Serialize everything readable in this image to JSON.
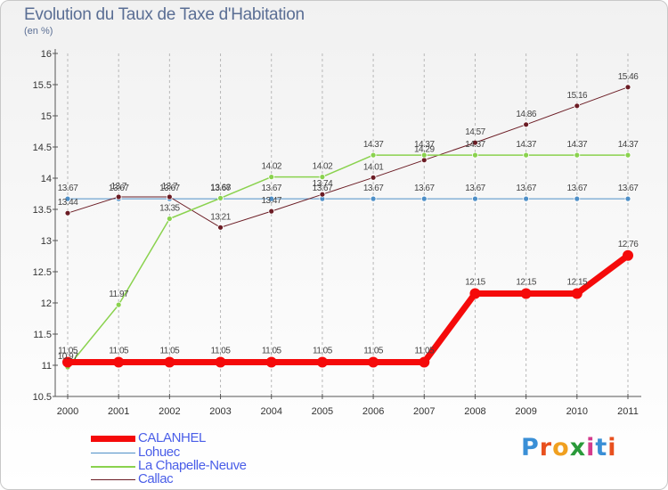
{
  "title": "Evolution du Taux de Taxe d'Habitation",
  "unit": "(en %)",
  "logo": {
    "letters": [
      "P",
      "r",
      "o",
      "x",
      "i",
      "t",
      "i"
    ],
    "colors": [
      "#3a8fd6",
      "#e8501e",
      "#f0a020",
      "#2a9a3a",
      "#d43b8c",
      "#3a8fd6",
      "#e8501e"
    ]
  },
  "chart_data": {
    "type": "line",
    "title": "Evolution du Taux de Taxe d'Habitation",
    "ylabel": "(en %)",
    "xlabel": "",
    "x": [
      "2000",
      "2001",
      "2002",
      "2003",
      "2004",
      "2005",
      "2006",
      "2007",
      "2008",
      "2009",
      "2010",
      "2011"
    ],
    "ylim": [
      10.5,
      16
    ],
    "yticks": [
      "10.5",
      "11",
      "11.5",
      "12",
      "12.5",
      "13",
      "13.5",
      "14",
      "14.5",
      "15",
      "15.5",
      "16"
    ],
    "series": [
      {
        "name": "Lohuec",
        "color": "#4e8fc7",
        "width": 1,
        "values": [
          13.67,
          13.67,
          13.67,
          13.67,
          13.67,
          13.67,
          13.67,
          13.67,
          13.67,
          13.67,
          13.67,
          13.67
        ],
        "labels": [
          "13.67",
          "13.67",
          "13.67",
          "13.67",
          "13.67",
          "13.67",
          "13.67",
          "13.67",
          "13.67",
          "13.67",
          "13.67",
          "13.67"
        ]
      },
      {
        "name": "Callac",
        "color": "#6b1c24",
        "width": 1,
        "values": [
          13.44,
          13.7,
          13.7,
          13.21,
          13.47,
          13.74,
          14.01,
          14.29,
          14.57,
          14.86,
          15.16,
          15.46
        ],
        "labels": [
          "13.44",
          "13.7",
          "13.7",
          "13.21",
          "13.47",
          "13.74",
          "14.01",
          "14.29",
          "14.57",
          "14.86",
          "15.16",
          "15.46"
        ]
      },
      {
        "name": "La Chapelle-Neuve",
        "color": "#8ad24e",
        "width": 1.5,
        "values": [
          10.97,
          11.97,
          13.35,
          13.68,
          14.02,
          14.02,
          14.37,
          14.37,
          14.37,
          14.37,
          14.37,
          14.37
        ],
        "labels": [
          "10.97",
          "11.97",
          "13.35",
          "13.68",
          "14.02",
          "14.02",
          "14.37",
          "14.37",
          "14.37",
          "14.37",
          "14.37",
          "14.37"
        ]
      },
      {
        "name": "CALANHEL",
        "color": "#f50a0a",
        "width": 7,
        "values": [
          11.05,
          11.05,
          11.05,
          11.05,
          11.05,
          11.05,
          11.05,
          11.05,
          12.15,
          12.15,
          12.15,
          12.76
        ],
        "labels": [
          "11.05",
          "11.05",
          "11.05",
          "11.05",
          "11.05",
          "11.05",
          "11.05",
          "11.05",
          "12.15",
          "12.15",
          "12.15",
          "12.76"
        ]
      }
    ],
    "legend": [
      "CALANHEL",
      "Lohuec",
      "La Chapelle-Neuve",
      "Callac"
    ]
  }
}
